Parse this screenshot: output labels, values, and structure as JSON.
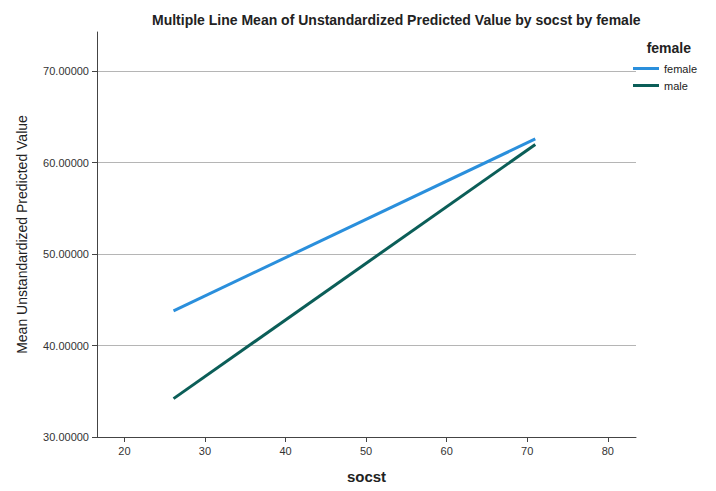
{
  "chart_data": {
    "type": "line",
    "title": "Multiple Line Mean of Unstandardized Predicted Value by socst by female",
    "x_label": "socst",
    "y_label": "Mean Unstandardized Predicted Value",
    "legend_title": "female",
    "legend": "upper right",
    "grid": true,
    "xlim": [
      16.6,
      83.5
    ],
    "xticks": [
      20,
      30,
      40,
      50,
      60,
      70,
      80
    ],
    "ylim": [
      30,
      74.3
    ],
    "yticks": [
      {
        "value": 30,
        "label": "30.00000"
      },
      {
        "value": 40,
        "label": "40.00000"
      },
      {
        "value": 50,
        "label": "50.00000"
      },
      {
        "value": 60,
        "label": "60.00000"
      },
      {
        "value": 70,
        "label": "70.00000"
      }
    ],
    "series": [
      {
        "name": "female",
        "color": "#2a8fdc",
        "line_style": "solid",
        "x": [
          26.1,
          71.0
        ],
        "values": [
          43.8,
          62.6
        ]
      },
      {
        "name": "male",
        "color": "#0b5e58",
        "line_style": "solid",
        "x": [
          26.1,
          71.0
        ],
        "values": [
          34.2,
          62.0
        ]
      }
    ]
  }
}
